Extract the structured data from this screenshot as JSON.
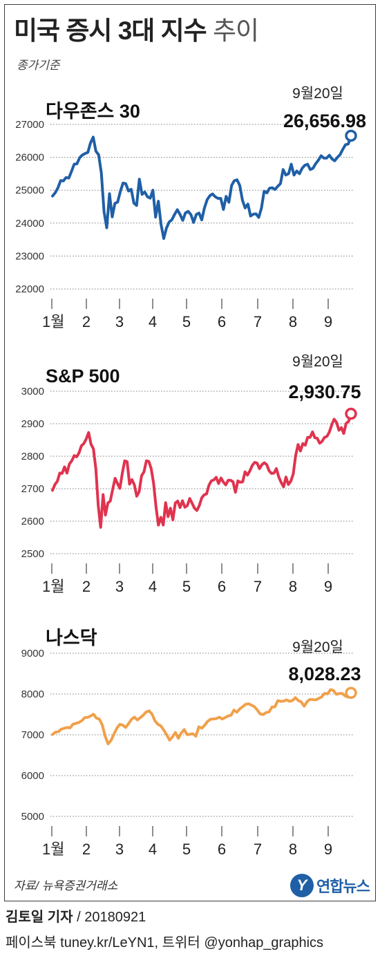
{
  "header": {
    "title_bold": "미국 증시 3대 지수",
    "title_light": "추이",
    "subtitle": "종가기준"
  },
  "footer": {
    "source": "자료/ 뉴욕증권거래소",
    "logo_text": "연합뉴스",
    "author": "김토일 기자",
    "date": " / 20180921",
    "social": "페이스북 tuney.kr/LeYN1, 트위터 @yonhap_graphics"
  },
  "chart_data": [
    {
      "type": "line",
      "title": "다우존스 30",
      "color": "#1f5fa6",
      "ylim": [
        22000,
        27000
      ],
      "yticks": [
        22000,
        23000,
        24000,
        25000,
        26000,
        27000
      ],
      "ytick_labels": [
        "22000",
        "23000",
        "24000",
        "25000",
        "26000",
        "27000"
      ],
      "xtick_labels": [
        "1월",
        "2",
        "3",
        "4",
        "5",
        "6",
        "7",
        "8",
        "9"
      ],
      "annotation": {
        "date": "9월20일",
        "value": "26,656.98"
      },
      "last_value": 26656.98,
      "values": [
        24824,
        24922,
        25075,
        25295,
        25283,
        25386,
        25369,
        25574,
        25792,
        25803,
        25987,
        26071,
        26115,
        26149,
        26439,
        26616,
        26186,
        26076,
        25520,
        24346,
        23860,
        24893,
        24190,
        24601,
        24640,
        24964,
        25219,
        25200,
        24975,
        25029,
        24608,
        24538,
        25336,
        24874,
        24946,
        24801,
        24758,
        25003,
        24185,
        24667,
        23957,
        23533,
        23849,
        24033,
        24103,
        24264,
        24408,
        24262,
        24083,
        24311,
        24357,
        24261,
        24024,
        24262,
        24307,
        24099,
        24464,
        24715,
        24834,
        24886,
        24800,
        24753,
        24753,
        24416,
        24813,
        24635,
        25146,
        25289,
        25317,
        25147,
        24700,
        24461,
        24580,
        24216,
        24270,
        24283,
        24174,
        24456,
        24971,
        24919,
        25064,
        25075,
        25020,
        25119,
        25199,
        25628,
        25463,
        25502,
        25790,
        25462,
        25583,
        25502,
        25666,
        25759,
        25790,
        25628,
        25669,
        25806,
        25916,
        26049,
        25974,
        25975,
        26062,
        25952,
        25896,
        25999,
        26085,
        26246,
        26385,
        26405,
        26656
      ]
    },
    {
      "type": "line",
      "title": "S&P 500",
      "color": "#e0334f",
      "ylim": [
        2500,
        3000
      ],
      "yticks": [
        2500,
        2600,
        2700,
        2800,
        2900,
        3000
      ],
      "ytick_labels": [
        "2500",
        "2600",
        "2700",
        "2800",
        "2900",
        "3000"
      ],
      "xtick_labels": [
        "1월",
        "2",
        "3",
        "4",
        "5",
        "6",
        "7",
        "8",
        "9"
      ],
      "annotation": {
        "date": "9월20일",
        "value": "2,930.75"
      },
      "last_value": 2930.75,
      "values": [
        2695,
        2713,
        2723,
        2748,
        2747,
        2767,
        2748,
        2776,
        2786,
        2802,
        2798,
        2810,
        2832,
        2839,
        2853,
        2873,
        2837,
        2823,
        2762,
        2648,
        2581,
        2682,
        2619,
        2656,
        2662,
        2698,
        2732,
        2716,
        2701,
        2747,
        2786,
        2783,
        2714,
        2728,
        2712,
        2677,
        2691,
        2740,
        2752,
        2786,
        2784,
        2762,
        2717,
        2644,
        2588,
        2612,
        2588,
        2657,
        2614,
        2640,
        2604,
        2656,
        2662,
        2642,
        2663,
        2643,
        2648,
        2670,
        2655,
        2640,
        2633,
        2648,
        2672,
        2681,
        2684,
        2711,
        2724,
        2727,
        2735,
        2716,
        2733,
        2720,
        2712,
        2726,
        2726,
        2721,
        2689,
        2724,
        2720,
        2721,
        2752,
        2742,
        2755,
        2772,
        2781,
        2779,
        2762,
        2774,
        2780,
        2774,
        2755,
        2747,
        2748,
        2762,
        2736,
        2719,
        2706,
        2736,
        2713,
        2723,
        2745,
        2802,
        2836,
        2816,
        2839,
        2834,
        2858,
        2858,
        2875,
        2857,
        2855,
        2840,
        2846,
        2858,
        2861,
        2874,
        2896,
        2914,
        2904,
        2880,
        2888,
        2870,
        2901,
        2907,
        2930
      ]
    },
    {
      "type": "line",
      "title": "나스닥",
      "color": "#f0a04a",
      "ylim": [
        5000,
        9000
      ],
      "yticks": [
        5000,
        6000,
        7000,
        8000,
        9000
      ],
      "ytick_labels": [
        "5000",
        "6000",
        "7000",
        "8000",
        "9000"
      ],
      "xtick_labels": [
        "1월",
        "2",
        "3",
        "4",
        "5",
        "6",
        "7",
        "8",
        "9"
      ],
      "annotation": {
        "date": "9월20일",
        "value": "8,028.23"
      },
      "last_value": 8028.23,
      "values": [
        7006,
        7065,
        7077,
        7137,
        7159,
        7180,
        7170,
        7260,
        7282,
        7302,
        7345,
        7421,
        7427,
        7460,
        7505,
        7411,
        7385,
        7240,
        6967,
        6778,
        6863,
        7013,
        7163,
        7256,
        7239,
        7179,
        7273,
        7382,
        7434,
        7364,
        7420,
        7482,
        7560,
        7588,
        7506,
        7345,
        7258,
        7220,
        7120,
        7003,
        6870,
        6950,
        7058,
        6916,
        7042,
        7129,
        7004,
        7016,
        7025,
        6966,
        7196,
        7161,
        7235,
        7328,
        7382,
        7388,
        7398,
        7432,
        7386,
        7424,
        7462,
        7479,
        7606,
        7554,
        7638,
        7689,
        7747,
        7761,
        7725,
        7689,
        7606,
        7510,
        7495,
        7548,
        7561,
        7679,
        7687,
        7837,
        7821,
        7825,
        7856,
        7820,
        7840,
        7911,
        7837,
        7806,
        7702,
        7812,
        7870,
        7861,
        7858,
        7894,
        7928,
        8017,
        8002,
        8109,
        8088,
        7994,
        8013,
        8013,
        7954,
        7924,
        8028
      ]
    }
  ]
}
